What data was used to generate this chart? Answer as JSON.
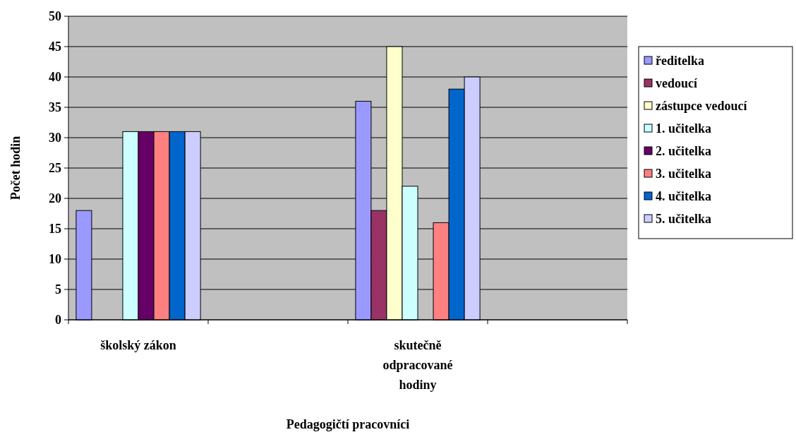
{
  "chart_data": {
    "type": "bar",
    "xlabel": "Pedagogičtí pracovníci",
    "ylabel": "Počet hodin",
    "categories": [
      "školský zákon",
      null,
      "skutečně odpracované hodiny",
      null
    ],
    "series": [
      {
        "name": "ředitelka",
        "color": "#9999ff",
        "values": [
          18,
          null,
          36,
          null
        ]
      },
      {
        "name": "vedoucí",
        "color": "#993366",
        "values": [
          null,
          null,
          18,
          null
        ]
      },
      {
        "name": "zástupce vedoucí",
        "color": "#ffffcc",
        "values": [
          null,
          null,
          45,
          null
        ]
      },
      {
        "name": "1. učitelka",
        "color": "#ccffff",
        "values": [
          31,
          null,
          22,
          null
        ]
      },
      {
        "name": "2. učitelka",
        "color": "#660066",
        "values": [
          31,
          null,
          null,
          null
        ]
      },
      {
        "name": "3. učitelka",
        "color": "#ff8080",
        "values": [
          31,
          null,
          16,
          null
        ]
      },
      {
        "name": "4. učitelka",
        "color": "#0066cc",
        "values": [
          31,
          null,
          38,
          null
        ]
      },
      {
        "name": "5. učitelka",
        "color": "#ccccff",
        "values": [
          31,
          null,
          40,
          null
        ]
      }
    ],
    "ylim": [
      0,
      50
    ],
    "yticks": [
      0,
      5,
      10,
      15,
      20,
      25,
      30,
      35,
      40,
      45,
      50
    ],
    "grid": "y",
    "legend": "right"
  }
}
